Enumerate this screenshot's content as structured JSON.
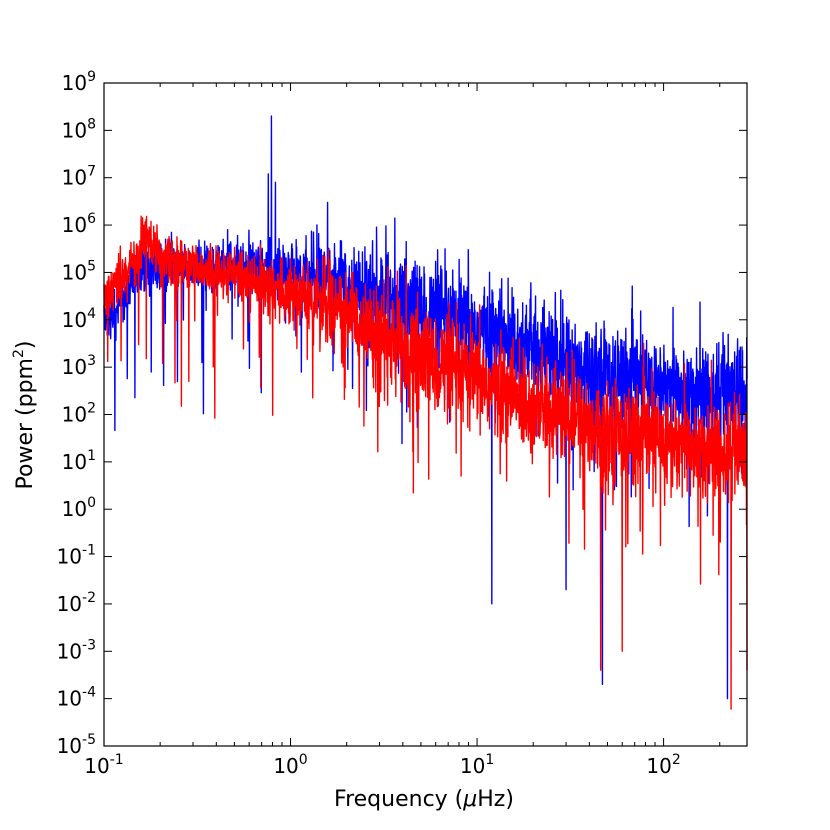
{
  "chart_data": {
    "type": "line",
    "xscale": "log",
    "yscale": "log",
    "title": "",
    "xlabel": {
      "main": "Frequency (",
      "mu": "μ",
      "unit": "Hz)"
    },
    "ylabel": {
      "main": "Power (ppm",
      "exp": "2",
      "close": ")"
    },
    "xlim": [
      0.1,
      280
    ],
    "ylim": [
      1e-05,
      1000000000.0
    ],
    "x_ticks": [
      {
        "value": 0.1,
        "base": "10",
        "exp": "-1"
      },
      {
        "value": 1,
        "base": "10",
        "exp": "0"
      },
      {
        "value": 10,
        "base": "10",
        "exp": "1"
      },
      {
        "value": 100,
        "base": "10",
        "exp": "2"
      }
    ],
    "y_ticks": [
      {
        "value": 1e-05,
        "base": "10",
        "exp": "-5"
      },
      {
        "value": 0.0001,
        "base": "10",
        "exp": "-4"
      },
      {
        "value": 0.001,
        "base": "10",
        "exp": "-3"
      },
      {
        "value": 0.01,
        "base": "10",
        "exp": "-2"
      },
      {
        "value": 0.1,
        "base": "10",
        "exp": "-1"
      },
      {
        "value": 1,
        "base": "10",
        "exp": "0"
      },
      {
        "value": 10,
        "base": "10",
        "exp": "1"
      },
      {
        "value": 100,
        "base": "10",
        "exp": "2"
      },
      {
        "value": 1000,
        "base": "10",
        "exp": "3"
      },
      {
        "value": 10000,
        "base": "10",
        "exp": "4"
      },
      {
        "value": 100000,
        "base": "10",
        "exp": "5"
      },
      {
        "value": 1000000,
        "base": "10",
        "exp": "6"
      },
      {
        "value": 10000000,
        "base": "10",
        "exp": "7"
      },
      {
        "value": 100000000,
        "base": "10",
        "exp": "8"
      },
      {
        "value": 1000000000,
        "base": "10",
        "exp": "9"
      }
    ],
    "series": [
      {
        "name": "blue spectrum",
        "color": "#0000ff",
        "trend": [
          [
            0.1,
            12000
          ],
          [
            0.12,
            15000
          ],
          [
            0.15,
            100000
          ],
          [
            0.2,
            150000
          ],
          [
            0.5,
            130000
          ],
          [
            0.7,
            150000
          ],
          [
            1.0,
            100000
          ],
          [
            2.0,
            60000
          ],
          [
            3.0,
            30000
          ],
          [
            5.0,
            15000
          ],
          [
            10.0,
            6000
          ],
          [
            20.0,
            2500
          ],
          [
            50.0,
            700
          ],
          [
            100.0,
            350
          ],
          [
            280.0,
            280
          ]
        ],
        "peaks": [
          [
            0.79,
            200000000
          ],
          [
            0.76,
            12000000
          ],
          [
            0.83,
            8000000
          ],
          [
            1.58,
            3000000
          ],
          [
            0.46,
            800000
          ],
          [
            0.23,
            700000
          ],
          [
            0.52,
            600000
          ]
        ],
        "dips": [
          [
            47,
            0.0002
          ],
          [
            220,
            0.0001
          ],
          [
            12,
            0.01
          ],
          [
            30,
            0.02
          ]
        ]
      },
      {
        "name": "red spectrum",
        "color": "#ff0000",
        "trend": [
          [
            0.1,
            30000
          ],
          [
            0.12,
            60000
          ],
          [
            0.15,
            150000
          ],
          [
            0.17,
            600000
          ],
          [
            0.2,
            200000
          ],
          [
            0.5,
            90000
          ],
          [
            1.0,
            40000
          ],
          [
            2.0,
            15000
          ],
          [
            3.0,
            5000
          ],
          [
            5.0,
            1500
          ],
          [
            10.0,
            500
          ],
          [
            20.0,
            150
          ],
          [
            50.0,
            50
          ],
          [
            100.0,
            25
          ],
          [
            280.0,
            15
          ]
        ],
        "peaks": [
          [
            0.17,
            600000
          ],
          [
            0.15,
            400000
          ],
          [
            0.22,
            500000
          ]
        ],
        "dips": [
          [
            0.26,
            150
          ],
          [
            46,
            0.0004
          ],
          [
            230,
            6e-05
          ],
          [
            60,
            0.001
          ],
          [
            280,
            0.0004
          ]
        ]
      }
    ]
  }
}
